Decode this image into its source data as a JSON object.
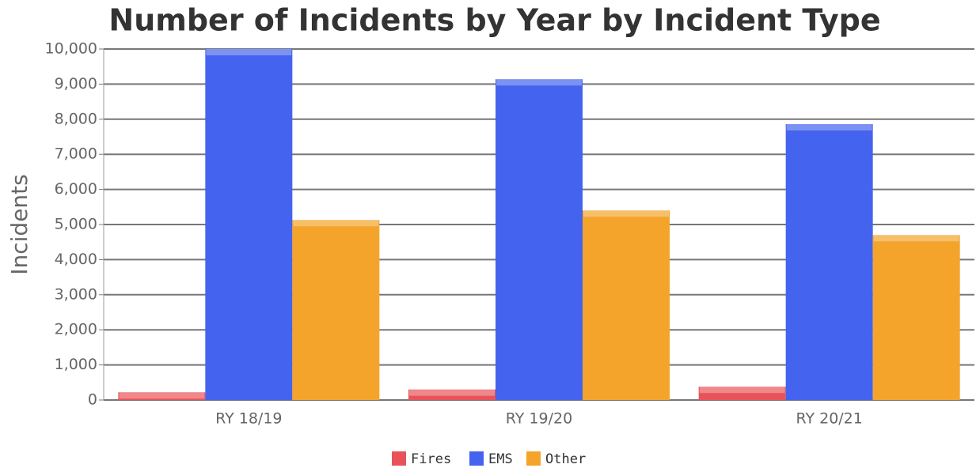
{
  "chart_data": {
    "type": "bar",
    "title": "Number of Incidents by Year by Incident Type",
    "y_label": "Incidents",
    "categories": [
      "RY 18/19",
      "RY 19/20",
      "RY 20/21"
    ],
    "series": [
      {
        "name": "Fires",
        "color": "#e8535a",
        "values": [
          220,
          300,
          380
        ]
      },
      {
        "name": "EMS",
        "color": "#4463ee",
        "values": [
          10000,
          9140,
          7860
        ]
      },
      {
        "name": "Other",
        "color": "#f4a42a",
        "values": [
          5130,
          5400,
          4700
        ]
      }
    ],
    "ylim": [
      0,
      10000
    ],
    "yticks": [
      0,
      {
        "value": 1000,
        "label": "1,000"
      },
      {
        "value": 2000,
        "label": "2,000"
      },
      {
        "value": 3000,
        "label": "3,000"
      },
      {
        "value": 4000,
        "label": "4,000"
      },
      {
        "value": 5000,
        "label": "5,000"
      },
      {
        "value": 6000,
        "label": "6,000"
      },
      {
        "value": 7000,
        "label": "7,000"
      },
      {
        "value": 8000,
        "label": "8,000"
      },
      {
        "value": 9000,
        "label": "9,000"
      },
      {
        "value": 10000,
        "label": "10,000"
      }
    ],
    "grid": true,
    "legend": "bottom"
  }
}
